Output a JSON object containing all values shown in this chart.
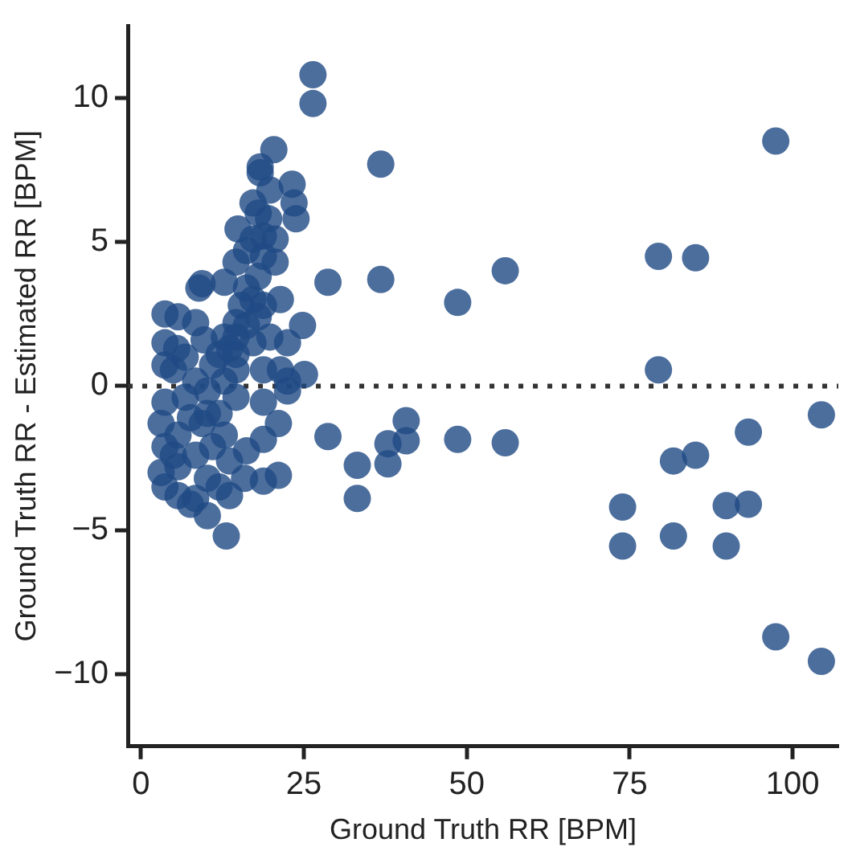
{
  "chart_data": {
    "type": "scatter",
    "xlabel": "Ground Truth RR [BPM]",
    "ylabel": "Ground Truth RR - Estimated RR [BPM]",
    "xlim": [
      -2,
      107
    ],
    "xticks": [
      0,
      25,
      50,
      75,
      100
    ],
    "ylim": [
      -12.5,
      12.5
    ],
    "yticks": [
      -10,
      -5,
      0,
      5,
      10
    ],
    "grid": false,
    "legend": false,
    "marker": "circle",
    "ref_lines": [
      {
        "axis": "y",
        "value": 0,
        "line_style": "dotted",
        "color": "#333333"
      }
    ],
    "series": [
      {
        "color": "#1f4a85",
        "x": [
          36.8,
          97.4,
          79.4,
          85.1,
          28.7,
          36.8,
          48.6,
          55.9,
          79.4,
          104.4,
          93.2,
          40.7,
          37.9,
          40.7,
          28.7,
          48.6,
          55.9,
          33.2,
          37.9,
          33.2,
          81.7,
          85.1,
          73.9,
          73.9,
          81.7,
          89.8,
          93.2,
          89.8,
          97.4,
          104.4,
          26.4,
          26.4,
          20.4,
          18.3,
          18.3,
          23.2,
          19.8,
          23.5,
          17.2,
          23.8,
          19.6,
          14.9,
          9.4,
          8.9,
          3.7,
          5.7,
          8.4,
          9.7,
          3.7,
          3.7,
          5.5,
          6.8,
          24.8,
          25.1,
          22.5,
          15.4,
          12.8,
          14.6,
          16.2,
          18.8,
          20.6,
          18.0,
          17.2,
          18.8,
          14.6,
          12.8,
          12.0,
          14.6,
          17.2,
          19.8,
          18.8,
          21.4,
          22.5,
          3.7,
          3.1,
          3.7,
          3.1,
          3.7,
          5.7,
          7.6,
          10.2,
          13.1,
          13.6,
          15.9,
          18.8,
          21.1,
          21.1,
          18.8,
          16.2,
          22.5,
          18.8,
          14.6,
          12.0,
          9.4,
          6.8,
          8.4,
          10.2,
          11.0,
          8.4,
          5.7,
          10.2,
          8.4,
          12.0,
          13.6,
          5.7,
          7.6,
          14.6,
          12.8,
          16.2,
          16.2,
          18.8,
          20.6,
          17.2,
          18.0,
          18.0,
          14.6,
          21.4,
          11.0,
          13.6,
          10.2,
          12.8,
          5.0,
          5.0
        ],
        "values": [
          7.7,
          8.5,
          4.5,
          4.45,
          3.6,
          3.7,
          2.9,
          4.0,
          0.56,
          -1.0,
          -1.6,
          -1.2,
          -2.0,
          -1.9,
          -1.75,
          -1.85,
          -1.97,
          -2.75,
          -2.7,
          -3.9,
          -2.6,
          -2.4,
          -4.2,
          -5.55,
          -5.2,
          -4.15,
          -4.1,
          -5.55,
          -8.7,
          -9.55,
          10.8,
          9.8,
          8.2,
          7.6,
          7.4,
          7.0,
          6.8,
          6.35,
          6.35,
          5.8,
          5.8,
          5.45,
          3.55,
          3.4,
          2.5,
          2.4,
          2.2,
          1.6,
          1.5,
          0.73,
          1.3,
          1.0,
          2.1,
          0.4,
          1.5,
          2.8,
          3.6,
          4.3,
          4.7,
          4.5,
          4.3,
          3.8,
          3.0,
          2.8,
          2.2,
          1.7,
          1.1,
          1.1,
          1.5,
          1.7,
          0.56,
          0.56,
          0.17,
          -0.56,
          -1.3,
          -2.1,
          -3.0,
          -3.5,
          -3.8,
          -4.1,
          -4.5,
          -5.2,
          -3.8,
          -3.2,
          -3.3,
          -3.1,
          -1.3,
          -1.85,
          -2.25,
          -0.17,
          -0.56,
          -0.39,
          -0.95,
          -1.3,
          -0.39,
          0.17,
          -0.17,
          -2.1,
          -2.4,
          -2.8,
          -3.2,
          -3.9,
          -3.5,
          -2.6,
          -1.7,
          -1.1,
          0.56,
          0.17,
          2.1,
          3.4,
          5.2,
          5.1,
          5.1,
          6.0,
          2.4,
          1.7,
          3.0,
          0.73,
          1.3,
          -0.95,
          -1.7,
          0.56,
          -2.4
        ]
      }
    ]
  }
}
